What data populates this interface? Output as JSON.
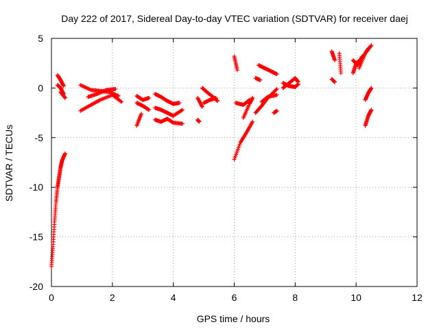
{
  "chart_data": {
    "type": "scatter",
    "title": "Day 222 of 2017, Sidereal Day-to-day VTEC variation (SDTVAR) for receiver daej",
    "xlabel": "GPS time / hours",
    "ylabel": "SDTVAR / TECUs",
    "xlim": [
      0,
      12
    ],
    "ylim": [
      -20,
      5
    ],
    "xticks": [
      0,
      2,
      4,
      6,
      8,
      10,
      12
    ],
    "yticks": [
      -20,
      -15,
      -10,
      -5,
      0,
      5
    ],
    "grid": true,
    "marker": "+",
    "color": "#ff0000",
    "segments": [
      {
        "x": [
          0.0,
          0.05,
          0.1,
          0.15,
          0.2,
          0.25,
          0.3,
          0.35,
          0.45
        ],
        "y": [
          -18.0,
          -16.0,
          -13.5,
          -11.5,
          -10.0,
          -9.0,
          -8.0,
          -7.3,
          -6.6
        ]
      },
      {
        "x": [
          0.2,
          0.3,
          0.4
        ],
        "y": [
          1.3,
          0.8,
          0.2
        ]
      },
      {
        "x": [
          0.2,
          0.3,
          0.4
        ],
        "y": [
          0.3,
          0.0,
          -0.6
        ]
      },
      {
        "x": [
          0.3,
          0.45
        ],
        "y": [
          -0.4,
          -1.0
        ]
      },
      {
        "x": [
          0.95,
          1.3,
          1.6,
          1.9,
          2.2
        ],
        "y": [
          0.3,
          -0.2,
          -0.3,
          -0.4,
          -0.8
        ]
      },
      {
        "x": [
          0.95,
          1.3,
          1.6,
          2.0,
          2.3
        ],
        "y": [
          -2.3,
          -1.7,
          -1.2,
          -0.7,
          -1.4
        ]
      },
      {
        "x": [
          1.2,
          1.5,
          1.8,
          2.1
        ],
        "y": [
          -0.9,
          -0.6,
          -0.2,
          -0.1
        ]
      },
      {
        "x": [
          2.8,
          3.0,
          3.2
        ],
        "y": [
          -0.8,
          -1.2,
          -1.0
        ]
      },
      {
        "x": [
          2.8,
          3.0,
          3.2
        ],
        "y": [
          -1.5,
          -1.8,
          -2.2
        ]
      },
      {
        "x": [
          2.8,
          2.95
        ],
        "y": [
          -3.8,
          -2.6
        ]
      },
      {
        "x": [
          3.4,
          3.6,
          3.8,
          4.0,
          4.2
        ],
        "y": [
          -0.6,
          -0.9,
          -1.3,
          -1.6,
          -1.5
        ]
      },
      {
        "x": [
          3.4,
          3.6,
          3.8,
          4.0,
          4.3
        ],
        "y": [
          -2.0,
          -2.2,
          -2.5,
          -2.8,
          -2.2
        ]
      },
      {
        "x": [
          3.4,
          3.6,
          3.8,
          4.0,
          4.3
        ],
        "y": [
          -3.2,
          -3.4,
          -3.1,
          -3.5,
          -3.6
        ]
      },
      {
        "x": [
          4.8,
          4.95
        ],
        "y": [
          -1.0,
          -1.9
        ]
      },
      {
        "x": [
          4.8,
          4.85
        ],
        "y": [
          -3.2,
          -3.4
        ]
      },
      {
        "x": [
          4.95,
          5.1,
          5.3,
          5.45
        ],
        "y": [
          0.0,
          -0.4,
          -0.9,
          -1.3
        ]
      },
      {
        "x": [
          5.0,
          5.2,
          5.4
        ],
        "y": [
          -1.5,
          -1.2,
          -1.0
        ]
      },
      {
        "x": [
          6.0,
          6.1
        ],
        "y": [
          3.2,
          1.8
        ]
      },
      {
        "x": [
          6.05,
          6.3,
          6.5
        ],
        "y": [
          -1.5,
          -1.7,
          -1.2
        ]
      },
      {
        "x": [
          6.0,
          6.2,
          6.4,
          6.6
        ],
        "y": [
          -7.2,
          -5.5,
          -4.5,
          -3.4
        ]
      },
      {
        "x": [
          6.3,
          6.5,
          6.6
        ],
        "y": [
          -3.0,
          -1.6,
          -1.0
        ]
      },
      {
        "x": [
          6.7,
          6.85
        ],
        "y": [
          1.0,
          0.8
        ]
      },
      {
        "x": [
          6.8,
          7.0,
          7.2,
          7.4
        ],
        "y": [
          2.3,
          2.0,
          1.7,
          1.4
        ]
      },
      {
        "x": [
          6.7,
          6.9,
          7.1,
          7.4
        ],
        "y": [
          -2.5,
          -1.8,
          -1.0,
          -0.1
        ]
      },
      {
        "x": [
          6.9,
          7.1,
          7.4
        ],
        "y": [
          -1.4,
          -0.9,
          -0.7
        ]
      },
      {
        "x": [
          7.3,
          7.4
        ],
        "y": [
          -2.5,
          -2.3
        ]
      },
      {
        "x": [
          7.6,
          7.8,
          8.0,
          8.1
        ],
        "y": [
          0.0,
          0.5,
          1.0,
          0.6
        ]
      },
      {
        "x": [
          7.6,
          7.8,
          8.0,
          8.1
        ],
        "y": [
          0.5,
          0.2,
          0.1,
          0.4
        ]
      },
      {
        "x": [
          9.2,
          9.3
        ],
        "y": [
          3.7,
          2.8
        ]
      },
      {
        "x": [
          9.45,
          9.5
        ],
        "y": [
          3.5,
          1.5
        ]
      },
      {
        "x": [
          9.2,
          9.3
        ],
        "y": [
          0.9,
          0.6
        ]
      },
      {
        "x": [
          9.9,
          10.0,
          10.2,
          10.4
        ],
        "y": [
          1.5,
          2.5,
          3.0,
          4.0
        ]
      },
      {
        "x": [
          10.1,
          10.3,
          10.5
        ],
        "y": [
          2.0,
          3.5,
          4.3
        ]
      },
      {
        "x": [
          9.9,
          10.05,
          10.2
        ],
        "y": [
          2.8,
          2.3,
          3.2
        ]
      },
      {
        "x": [
          10.3,
          10.4,
          10.5
        ],
        "y": [
          -1.2,
          -0.5,
          0.0
        ]
      },
      {
        "x": [
          10.3,
          10.4,
          10.5
        ],
        "y": [
          -3.8,
          -2.8,
          -2.2
        ]
      }
    ]
  }
}
